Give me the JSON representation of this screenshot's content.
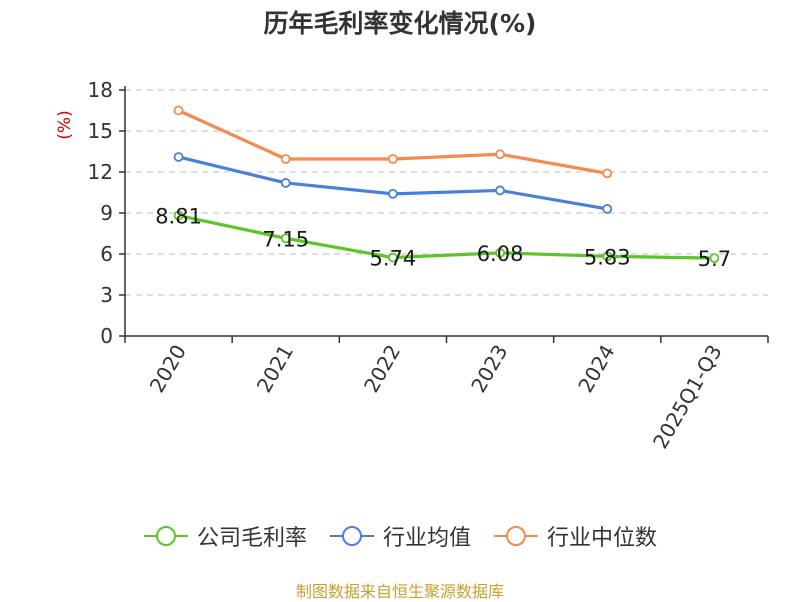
{
  "title": "历年毛利率变化情况(%)",
  "source": "制图数据来自恒生聚源数据库",
  "colors": {
    "source_text": "#c8a030",
    "unit_text": "#d00000",
    "grid": "#cccccc",
    "axis": "#333333"
  },
  "chart_data": {
    "type": "line",
    "title": "历年毛利率变化情况(%)",
    "unit_label": "(%)",
    "categories": [
      "2020",
      "2021",
      "2022",
      "2023",
      "2024",
      "2025Q1-Q3"
    ],
    "ylim": [
      0,
      18
    ],
    "yticks": [
      0,
      3,
      6,
      9,
      12,
      15,
      18
    ],
    "grid": true,
    "legend_position": "bottom",
    "series": [
      {
        "name": "公司毛利率",
        "color": "#5cc52a",
        "values": [
          8.81,
          7.15,
          5.74,
          6.08,
          5.83,
          5.7
        ],
        "labels": [
          "8.81",
          "7.15",
          "5.74",
          "6.08",
          "5.83",
          "5.7"
        ]
      },
      {
        "name": "行业均值",
        "color": "#4a7fdc",
        "values": [
          13.1,
          11.2,
          10.4,
          10.65,
          9.3,
          null
        ]
      },
      {
        "name": "行业中位数",
        "color": "#f78a4e",
        "values": [
          16.5,
          12.95,
          12.95,
          13.3,
          11.9,
          null
        ]
      }
    ]
  }
}
